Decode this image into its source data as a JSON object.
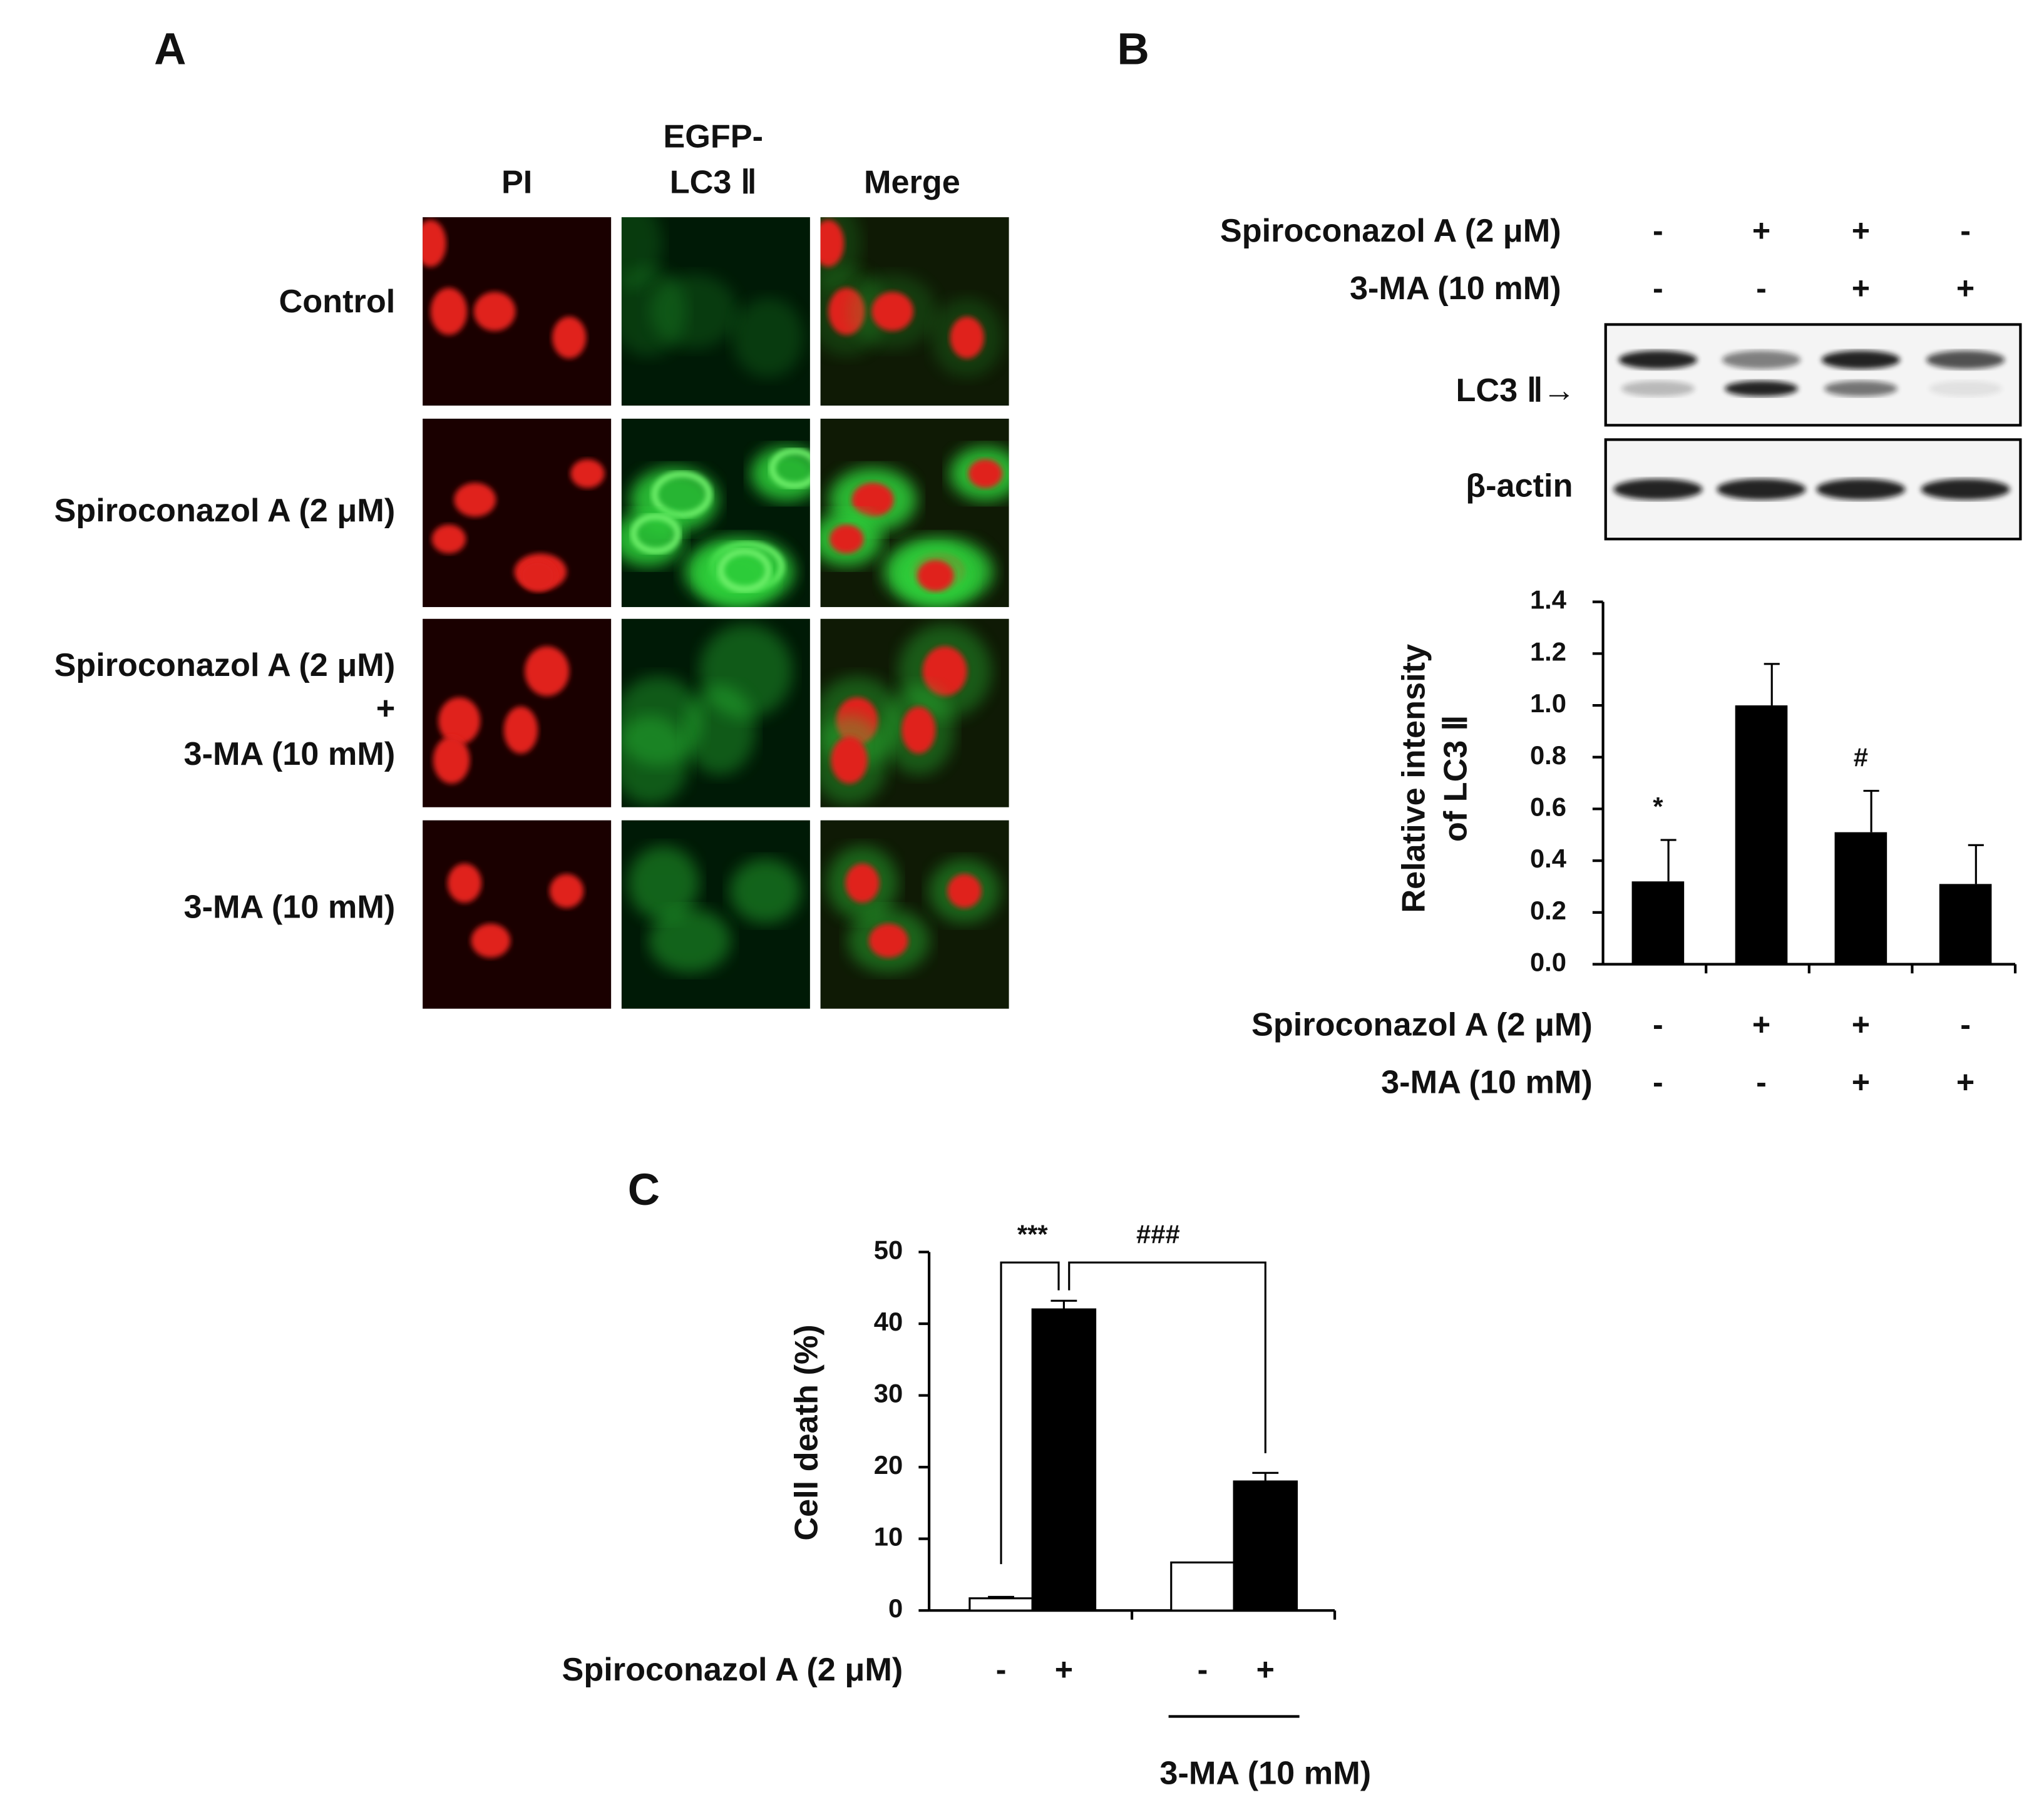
{
  "panel_labels": [
    "A",
    "B",
    "C"
  ],
  "panel_a": {
    "columns": [
      [
        "PI"
      ],
      [
        "EGFP-",
        "LC3 Ⅱ"
      ],
      [
        "Merge"
      ]
    ],
    "rows": [
      [
        "Control"
      ],
      [
        "Spiroconazol A (2 μM)"
      ],
      [
        "Spiroconazol A (2 μM)",
        "+",
        "3-MA (10 mM)"
      ],
      [
        "3-MA (10 mM)"
      ]
    ]
  },
  "panel_b_blot": {
    "treatments": [
      {
        "label": "Spiroconazol A (2 μM)",
        "signs": [
          "-",
          "+",
          "+",
          "-"
        ]
      },
      {
        "label": "3-MA (10 mM)",
        "signs": [
          "-",
          "-",
          "+",
          "+"
        ]
      }
    ],
    "bands": [
      "LC3 Ⅱ→",
      "β-actin"
    ]
  },
  "chart_data": [
    {
      "type": "bar",
      "ylabel": [
        "Relative intensity",
        "of LC3 Ⅱ"
      ],
      "values": [
        0.32,
        1.0,
        0.51,
        0.31
      ],
      "errors": [
        0.16,
        0.16,
        0.16,
        0.15
      ],
      "annotations": [
        "*",
        null,
        "#",
        null
      ],
      "color": "#000000",
      "ylim": [
        0,
        1.4
      ],
      "yticks": [
        {
          "value": 0,
          "label": "0.0"
        },
        0.2,
        0.4,
        0.6,
        0.8,
        {
          "value": 1,
          "label": "1.0"
        },
        1.2,
        1.4
      ],
      "treatments": [
        {
          "label": "Spiroconazol A (2 μM)",
          "signs": [
            "-",
            "+",
            "+",
            "-"
          ]
        },
        {
          "label": "3-MA (10 mM)",
          "signs": [
            "-",
            "-",
            "+",
            "+"
          ]
        }
      ]
    },
    {
      "type": "grouped_bar",
      "ylabel": "Cell death (%)",
      "x_label": "Spiroconazol A (2 μM)",
      "categories": [
        null,
        "3-MA (10 mM)"
      ],
      "series": [
        {
          "name": "-",
          "color": "#ffffff",
          "values": [
            1.7,
            6.7
          ],
          "errors": [
            0.2,
            null
          ]
        },
        {
          "name": "+",
          "color": "#000000",
          "values": [
            42,
            18
          ],
          "errors": [
            1.2,
            1.2
          ]
        }
      ],
      "annotations": [
        "***",
        "###"
      ],
      "ylim": [
        0,
        50
      ],
      "yticks": [
        0,
        10,
        20,
        30,
        40,
        50
      ]
    }
  ]
}
